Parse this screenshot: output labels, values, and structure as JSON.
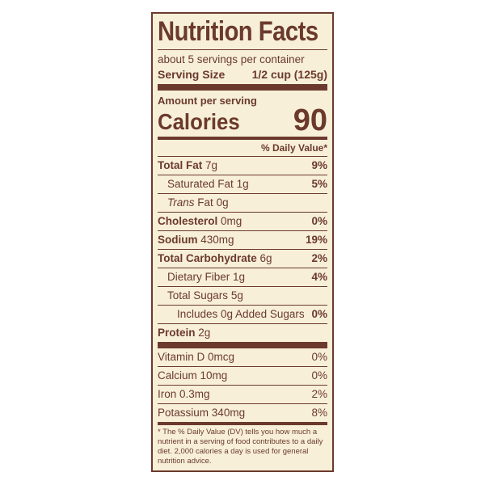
{
  "label": {
    "title": "Nutrition Facts",
    "servings_per_container": "about 5 servings per container",
    "serving_size_label": "Serving Size",
    "serving_size_value": "1/2 cup (125g)",
    "amount_per_serving": "Amount per serving",
    "calories_label": "Calories",
    "calories_value": "90",
    "daily_value_header": "% Daily Value*",
    "nutrients": [
      {
        "name": "Total Fat",
        "amount": "7g",
        "dv": "9%"
      },
      {
        "name": "Saturated Fat",
        "amount": "1g",
        "dv": "5%"
      },
      {
        "name": "Trans",
        "name_rest": "Fat",
        "amount": "0g",
        "dv": ""
      },
      {
        "name": "Cholesterol",
        "amount": "0mg",
        "dv": "0%"
      },
      {
        "name": "Sodium",
        "amount": "430mg",
        "dv": "19%"
      },
      {
        "name": "Total Carbohydrate",
        "amount": "6g",
        "dv": "2%"
      },
      {
        "name": "Dietary Fiber",
        "amount": "1g",
        "dv": "4%"
      },
      {
        "name": "Total Sugars",
        "amount": "5g",
        "dv": ""
      },
      {
        "name": "Includes 0g Added Sugars",
        "amount": "",
        "dv": "0%"
      },
      {
        "name": "Protein",
        "amount": "2g",
        "dv": ""
      }
    ],
    "vitamins": [
      {
        "name": "Vitamin D",
        "amount": "0mcg",
        "dv": "0%"
      },
      {
        "name": "Calcium",
        "amount": "10mg",
        "dv": "0%"
      },
      {
        "name": "Iron",
        "amount": "0.3mg",
        "dv": "2%"
      },
      {
        "name": "Potassium",
        "amount": "340mg",
        "dv": "8%"
      }
    ],
    "footnote": "* The % Daily Value (DV) tells you how much a nutrient in a serving of food contributes to a daily diet. 2,000 calories a day is used for general nutrition advice.",
    "colors": {
      "ink": "#6b3a2c",
      "background": "#f7efd8"
    }
  }
}
